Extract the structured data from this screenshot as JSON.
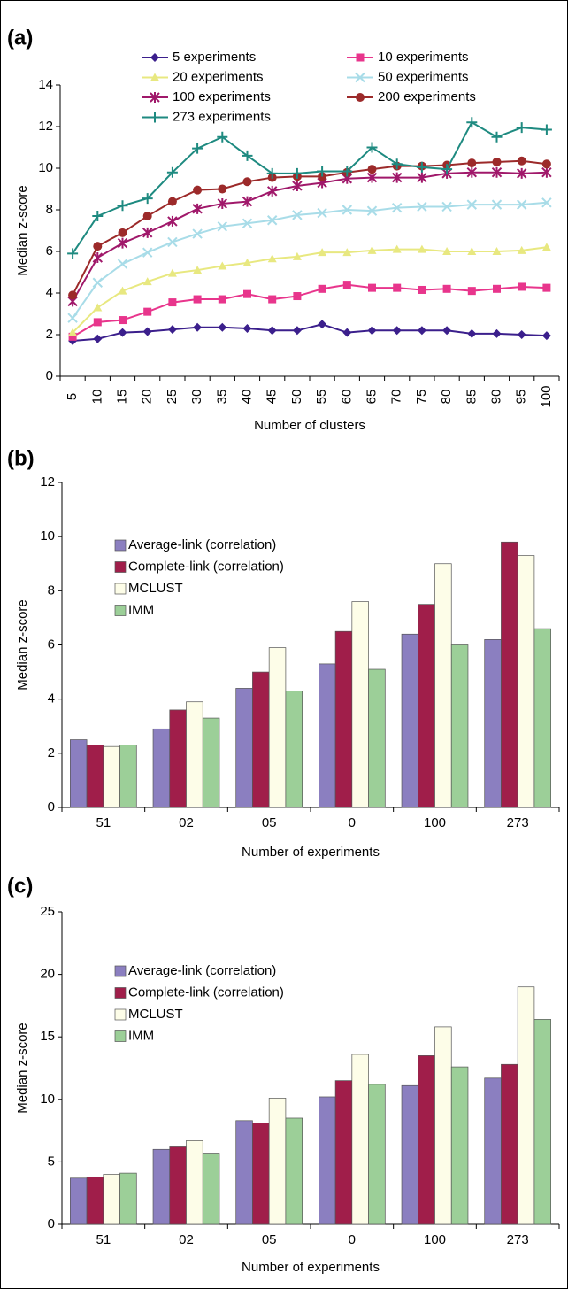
{
  "chart_data": [
    {
      "type": "line",
      "label": "(a)",
      "x_label": "Number of clusters",
      "y_label": "Median z-score",
      "categories": [
        "5",
        "10",
        "15",
        "20",
        "25",
        "30",
        "35",
        "40",
        "45",
        "50",
        "55",
        "60",
        "65",
        "70",
        "75",
        "80",
        "85",
        "90",
        "95",
        "100"
      ],
      "ylim": [
        0,
        14
      ],
      "yticks": [
        0,
        2,
        4,
        6,
        8,
        10,
        12,
        14
      ],
      "series": [
        {
          "name": "5 experiments",
          "color": "#3b1f8c",
          "marker": "diamond",
          "values": [
            1.7,
            1.8,
            2.1,
            2.15,
            2.25,
            2.35,
            2.35,
            2.3,
            2.2,
            2.2,
            2.5,
            2.1,
            2.2,
            2.2,
            2.2,
            2.2,
            2.05,
            2.05,
            2.0,
            1.95
          ]
        },
        {
          "name": "10 experiments",
          "color": "#e8358c",
          "marker": "square",
          "values": [
            1.9,
            2.6,
            2.7,
            3.1,
            3.55,
            3.7,
            3.7,
            3.95,
            3.7,
            3.85,
            4.2,
            4.4,
            4.25,
            4.25,
            4.15,
            4.2,
            4.1,
            4.2,
            4.3,
            4.25
          ]
        },
        {
          "name": "20 experiments",
          "color": "#e8e880",
          "marker": "triangle",
          "values": [
            2.1,
            3.3,
            4.1,
            4.55,
            4.95,
            5.1,
            5.3,
            5.45,
            5.65,
            5.75,
            5.95,
            5.95,
            6.05,
            6.1,
            6.1,
            6.0,
            6.0,
            6.0,
            6.05,
            6.2
          ]
        },
        {
          "name": "50 experiments",
          "color": "#a8dce8",
          "marker": "x",
          "values": [
            2.8,
            4.5,
            5.4,
            5.95,
            6.45,
            6.85,
            7.2,
            7.35,
            7.5,
            7.75,
            7.85,
            8.0,
            7.95,
            8.1,
            8.15,
            8.15,
            8.25,
            8.25,
            8.25,
            8.35
          ]
        },
        {
          "name": "100 experiments",
          "color": "#a0186a",
          "marker": "star",
          "values": [
            3.6,
            5.7,
            6.4,
            6.9,
            7.45,
            8.05,
            8.3,
            8.4,
            8.9,
            9.15,
            9.3,
            9.5,
            9.55,
            9.55,
            9.55,
            9.75,
            9.8,
            9.8,
            9.75,
            9.8
          ]
        },
        {
          "name": "200 experiments",
          "color": "#9c2a2a",
          "marker": "circle",
          "values": [
            3.9,
            6.25,
            6.9,
            7.7,
            8.4,
            8.95,
            9.0,
            9.35,
            9.55,
            9.6,
            9.6,
            9.8,
            9.95,
            10.1,
            10.1,
            10.15,
            10.25,
            10.3,
            10.35,
            10.2
          ]
        },
        {
          "name": "273 experiments",
          "color": "#1e8a80",
          "marker": "plus",
          "values": [
            5.9,
            7.7,
            8.2,
            8.55,
            9.8,
            10.95,
            11.5,
            10.6,
            9.75,
            9.75,
            9.85,
            9.85,
            11.0,
            10.2,
            10.05,
            9.95,
            12.2,
            11.5,
            11.95,
            11.85
          ]
        }
      ]
    },
    {
      "type": "bar",
      "label": "(b)",
      "x_label": "Number of experiments",
      "y_label": "Median z-score",
      "categories": [
        "51",
        "02",
        "05",
        "0",
        "100",
        "273"
      ],
      "ylim": [
        0,
        12
      ],
      "yticks": [
        0,
        2,
        4,
        6,
        8,
        10,
        12
      ],
      "series": [
        {
          "name": "Average-link (correlation)",
          "color": "#8b7fc0",
          "values": [
            2.5,
            2.9,
            4.4,
            5.3,
            6.4,
            6.2
          ]
        },
        {
          "name": "Complete-link (correlation)",
          "color": "#a01e4a",
          "values": [
            2.3,
            3.6,
            5.0,
            6.5,
            7.5,
            9.8
          ]
        },
        {
          "name": "MCLUST",
          "color": "#fdfde8",
          "values": [
            2.25,
            3.9,
            5.9,
            7.6,
            9.0,
            9.3
          ]
        },
        {
          "name": "IMM",
          "color": "#9ccf98",
          "values": [
            2.3,
            3.3,
            4.3,
            5.1,
            6.0,
            6.6
          ]
        }
      ]
    },
    {
      "type": "bar",
      "label": "(c)",
      "x_label": "Number of experiments",
      "y_label": "Median z-score",
      "categories": [
        "51",
        "02",
        "05",
        "0",
        "100",
        "273"
      ],
      "ylim": [
        0,
        25
      ],
      "yticks": [
        0,
        5,
        10,
        15,
        20,
        25
      ],
      "series": [
        {
          "name": "Average-link (correlation)",
          "color": "#8b7fc0",
          "values": [
            3.7,
            6.0,
            8.3,
            10.2,
            11.1,
            11.7
          ]
        },
        {
          "name": "Complete-link (correlation)",
          "color": "#a01e4a",
          "values": [
            3.8,
            6.2,
            8.1,
            11.5,
            13.5,
            12.8
          ]
        },
        {
          "name": "MCLUST",
          "color": "#fdfde8",
          "values": [
            4.0,
            6.7,
            10.1,
            13.6,
            15.8,
            19.0
          ]
        },
        {
          "name": "IMM",
          "color": "#9ccf98",
          "values": [
            4.1,
            5.7,
            8.5,
            11.2,
            12.6,
            16.4
          ]
        }
      ]
    }
  ]
}
